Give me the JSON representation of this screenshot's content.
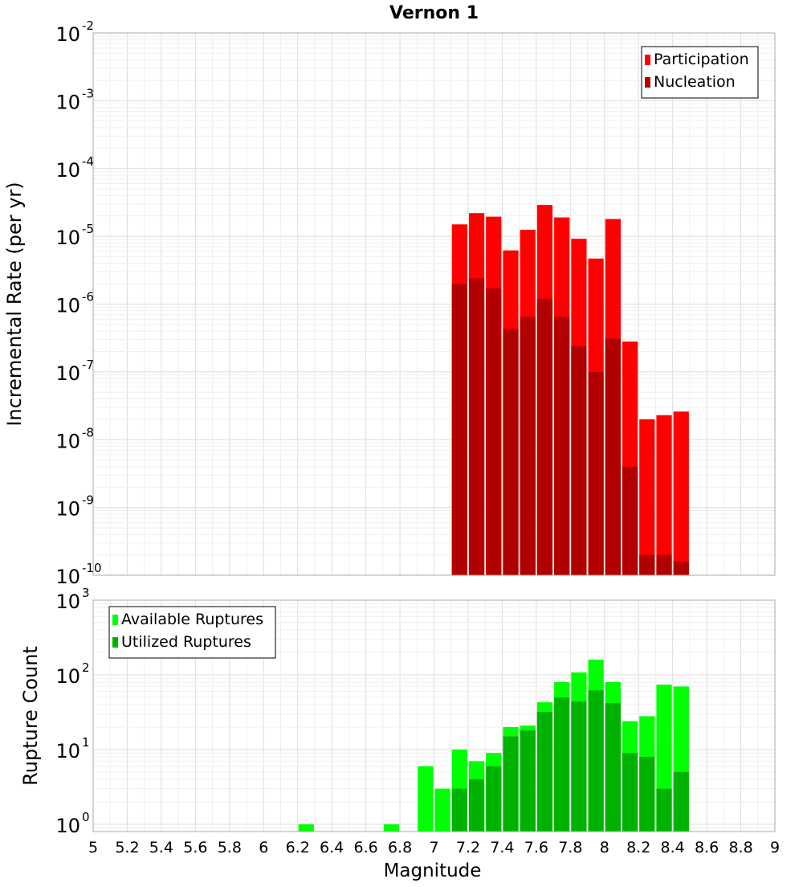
{
  "chart_data": [
    {
      "type": "bar",
      "title": "Vernon 1",
      "ylabel": "Incremental Rate (per yr)",
      "xlabel": "",
      "y_scale": "log",
      "ylim": [
        1e-10,
        0.01
      ],
      "xlim": [
        5,
        9
      ],
      "bar_width": 0.1,
      "grid": true,
      "legend_position": "top-right",
      "y_tick_exponents": [
        "-2",
        "-3",
        "-4",
        "-5",
        "-6",
        "-7",
        "-8",
        "-9",
        "-10"
      ],
      "y_tick_base": "10",
      "x": [
        7.15,
        7.25,
        7.35,
        7.45,
        7.55,
        7.65,
        7.75,
        7.85,
        7.95,
        8.05,
        8.15,
        8.25,
        8.35,
        8.45
      ],
      "series": [
        {
          "name": "Participation",
          "color": "#ff0000",
          "values": [
            1.5e-05,
            2.2e-05,
            1.95e-05,
            6.2e-06,
            1.25e-05,
            2.9e-05,
            1.9e-05,
            9.2e-06,
            4.7e-06,
            1.8e-05,
            2.8e-07,
            2e-08,
            2.3e-08,
            2.6e-08
          ]
        },
        {
          "name": "Nucleation",
          "color": "#b20000",
          "values": [
            2e-06,
            2.4e-06,
            1.7e-06,
            4.3e-07,
            6.5e-07,
            1.2e-06,
            6.5e-07,
            2.4e-07,
            1e-07,
            3.1e-07,
            4e-09,
            2e-10,
            2e-10,
            1.6e-10
          ]
        }
      ]
    },
    {
      "type": "bar",
      "title": "",
      "ylabel": "Rupture Count",
      "xlabel": "Magnitude",
      "y_scale": "log",
      "ylim": [
        0.8,
        1000
      ],
      "xlim": [
        5,
        9
      ],
      "bar_width": 0.1,
      "grid": true,
      "legend_position": "top-left",
      "y_tick_exponents": [
        "3",
        "2",
        "1",
        "0"
      ],
      "y_tick_base": "10",
      "x_ticks": [
        "5",
        "5.2",
        "5.4",
        "5.6",
        "5.8",
        "6",
        "6.2",
        "6.4",
        "6.6",
        "6.8",
        "7",
        "7.2",
        "7.4",
        "7.6",
        "7.8",
        "8",
        "8.2",
        "8.4",
        "8.6",
        "8.8",
        "9"
      ],
      "x": [
        6.25,
        6.75,
        6.95,
        7.05,
        7.15,
        7.25,
        7.35,
        7.45,
        7.55,
        7.65,
        7.75,
        7.85,
        7.95,
        8.05,
        8.15,
        8.25,
        8.35,
        8.45
      ],
      "series": [
        {
          "name": "Available Ruptures",
          "color": "#00ff00",
          "values": [
            1,
            1,
            6,
            3,
            10,
            7,
            9,
            20,
            21,
            43,
            80,
            108,
            160,
            80,
            24,
            28,
            74,
            70
          ]
        },
        {
          "name": "Utilized Ruptures",
          "color": "#00b200",
          "values": [
            0,
            0,
            0,
            0,
            3,
            4,
            6,
            15,
            18,
            32,
            50,
            44,
            62,
            42,
            9,
            8,
            3,
            5
          ]
        }
      ]
    }
  ]
}
